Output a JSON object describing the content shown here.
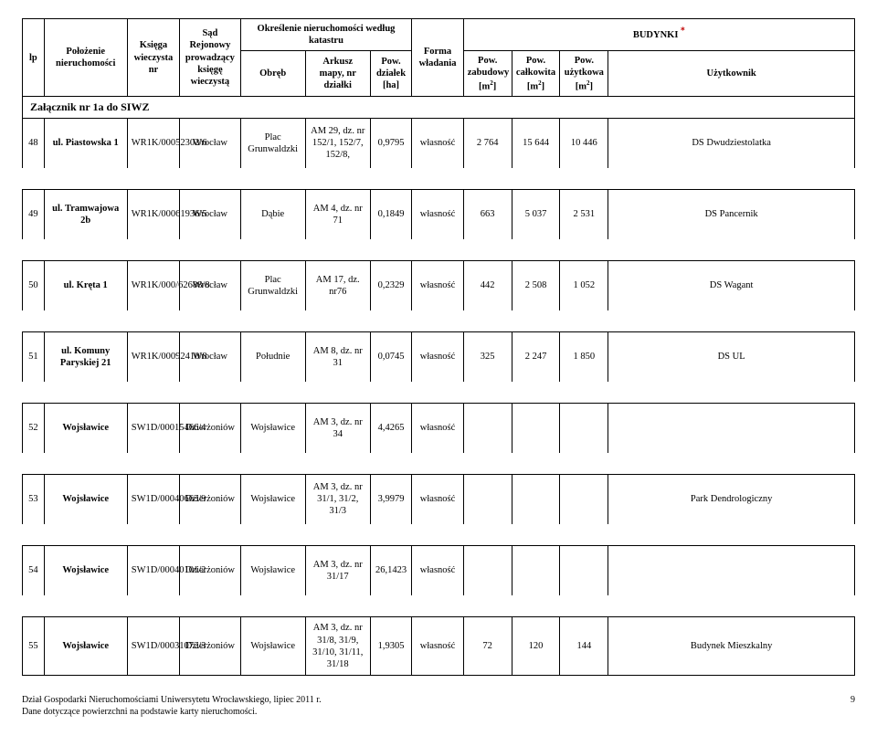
{
  "header": {
    "lp": "lp",
    "polozenie": "Położenie nieruchomości",
    "ksiega": "Księga wieczysta nr",
    "sad": "Sąd Rejonowy prowadzący księgę wieczystą",
    "okreslenie": "Określenie nieruchomości według katastru",
    "obreb": "Obręb",
    "arkusz": "Arkusz mapy, nr działki",
    "pow_dzialek": "Pow. działek [ha]",
    "forma": "Forma władania",
    "pow_zabudowy_l1": "Pow. zabudowy",
    "pow_calkowita_l1": "Pow. całkowita",
    "pow_uzytkowa_l1": "Pow. użytkowa",
    "m2": "[m",
    "budynki": "BUDYNKI",
    "uzytkownik": "Użytkownik"
  },
  "attachment": "Załącznik nr 1a do SIWZ",
  "rows": [
    {
      "lp": "48",
      "pol": "ul. Piastowska 1",
      "kw": "WR1K/00052302/6",
      "sad": "Wrocław",
      "obr": "Plac Grunwaldzki",
      "ark": "AM 29, dz. nr 152/1, 152/7, 152/8,",
      "powd": "0,9795",
      "for": "własność",
      "pz": "2 764",
      "pc": "15 644",
      "pu": "10 446",
      "uz": "DS Dwudziestolatka"
    },
    {
      "lp": "49",
      "pol": "ul. Tramwajowa 2b",
      "kw": "WR1K/00061936/5",
      "sad": "Wrocław",
      "obr": "Dąbie",
      "ark": "AM 4, dz. nr 71",
      "powd": "0,1849",
      "for": "własność",
      "pz": "663",
      "pc": "5 037",
      "pu": "2 531",
      "uz": "DS Pancernik"
    },
    {
      "lp": "50",
      "pol": "ul. Kręta 1",
      "kw": "WR1K/000/62688/8",
      "sad": "Wrocław",
      "obr": "Plac Grunwaldzki",
      "ark": "AM 17, dz. nr76",
      "powd": "0,2329",
      "for": "własność",
      "pz": "442",
      "pc": "2 508",
      "pu": "1 052",
      "uz": "DS Wagant"
    },
    {
      "lp": "51",
      "pol": "ul. Komuny Paryskiej 21",
      "kw": "WR1K/00092410/8",
      "sad": "Wrocław",
      "obr": "Południe",
      "ark": "AM 8, dz. nr 31",
      "powd": "0,0745",
      "for": "własność",
      "pz": "325",
      "pc": "2 247",
      "pu": "1 850",
      "uz": "DS UL"
    },
    {
      "lp": "52",
      "pol": "Wojsławice",
      "kw": "SW1D/00015466/4",
      "sad": "Dzierżoniów",
      "obr": "Wojsławice",
      "ark": "AM 3, dz. nr 34",
      "powd": "4,4265",
      "for": "własność",
      "pz": "",
      "pc": "",
      "pu": "",
      "uz": ""
    },
    {
      "lp": "53",
      "pol": "Wojsławice",
      "kw": "SW1D/00040663/9",
      "sad": "Dzierżoniów",
      "obr": "Wojsławice",
      "ark": "AM 3, dz. nr 31/1, 31/2, 31/3",
      "powd": "3,9979",
      "for": "własność",
      "pz": "",
      "pc": "",
      "pu": "",
      "uz": "Park Dendrologiczny"
    },
    {
      "lp": "54",
      "pol": "Wojsławice",
      "kw": "SW1D/00040101/2",
      "sad": "Dzierżoniów",
      "obr": "Wojsławice",
      "ark": "AM 3, dz. nr 31/17",
      "powd": "26,1423",
      "for": "własność",
      "pz": "",
      "pc": "",
      "pu": "",
      "uz": ""
    },
    {
      "lp": "55",
      "pol": "Wojsławice",
      "kw": "SW1D/00031072/3",
      "sad": "Dzierżoniów",
      "obr": "Wojsławice",
      "ark": "AM 3, dz. nr 31/8, 31/9, 31/10, 31/11, 31/18",
      "powd": "1,9305",
      "for": "własność",
      "pz": "72",
      "pc": "120",
      "pu": "144",
      "uz": "Budynek Mieszkalny"
    }
  ],
  "footer": {
    "line1": "Dział Gospodarki Nieruchomościami  Uniwersytetu Wrocławskiego, lipiec 2011 r.",
    "line2": "Dane dotyczące powierzchni na podstawie karty nieruchomości.",
    "page": "9"
  }
}
